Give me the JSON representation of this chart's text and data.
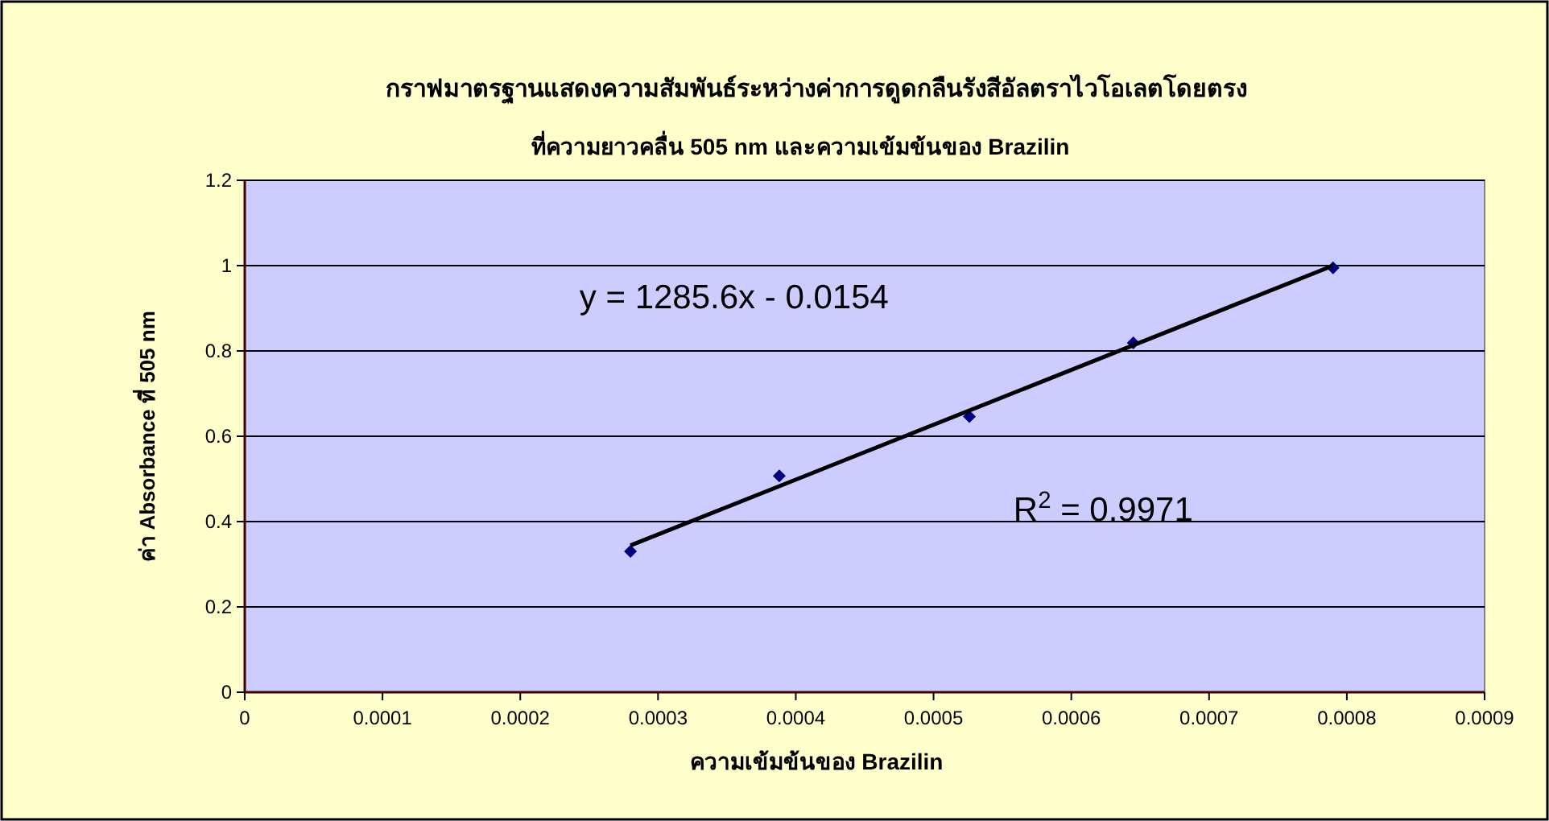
{
  "chart_data": {
    "type": "scatter",
    "title": "กราฟมาตรฐานแสดงความสัมพันธ์ระหว่างค่าการดูดกลืนรังสีอัลตราไวโอเลตโดยตรง",
    "subtitle": "ที่ความยาวคลื่น 505 nm และความเข้มข้นของ Brazilin",
    "xlabel": "ความเข้มข้นของ Brazilin",
    "ylabel": "ค่า Absorbance ที่ 505 nm",
    "annotations": [
      "y = 1285.6x - 0.0154",
      "R$^{2}$ = 0.9971"
    ],
    "xlim": [
      0,
      0.0009
    ],
    "xticks": [
      0,
      0.0001,
      0.0002,
      0.0003,
      0.0004,
      0.0005,
      0.0006,
      0.0007,
      0.0008,
      0.0009
    ],
    "ylim": [
      0,
      1.2
    ],
    "yticks": [
      0,
      0.2,
      0.4,
      0.6,
      0.8,
      1,
      1.2
    ],
    "grid": "y",
    "marker": "diamond",
    "series": [
      {
        "color": "#000080",
        "x": [
          0.00028,
          0.000388,
          0.000526,
          0.000645,
          0.00079
        ],
        "values": [
          0.33,
          0.507,
          0.646,
          0.819,
          0.995
        ]
      },
      {
        "type": "line",
        "marker": "none",
        "color": "#000000",
        "x": [
          0.00028,
          0.00079
        ],
        "values": [
          0.344,
          1.0
        ]
      }
    ]
  }
}
